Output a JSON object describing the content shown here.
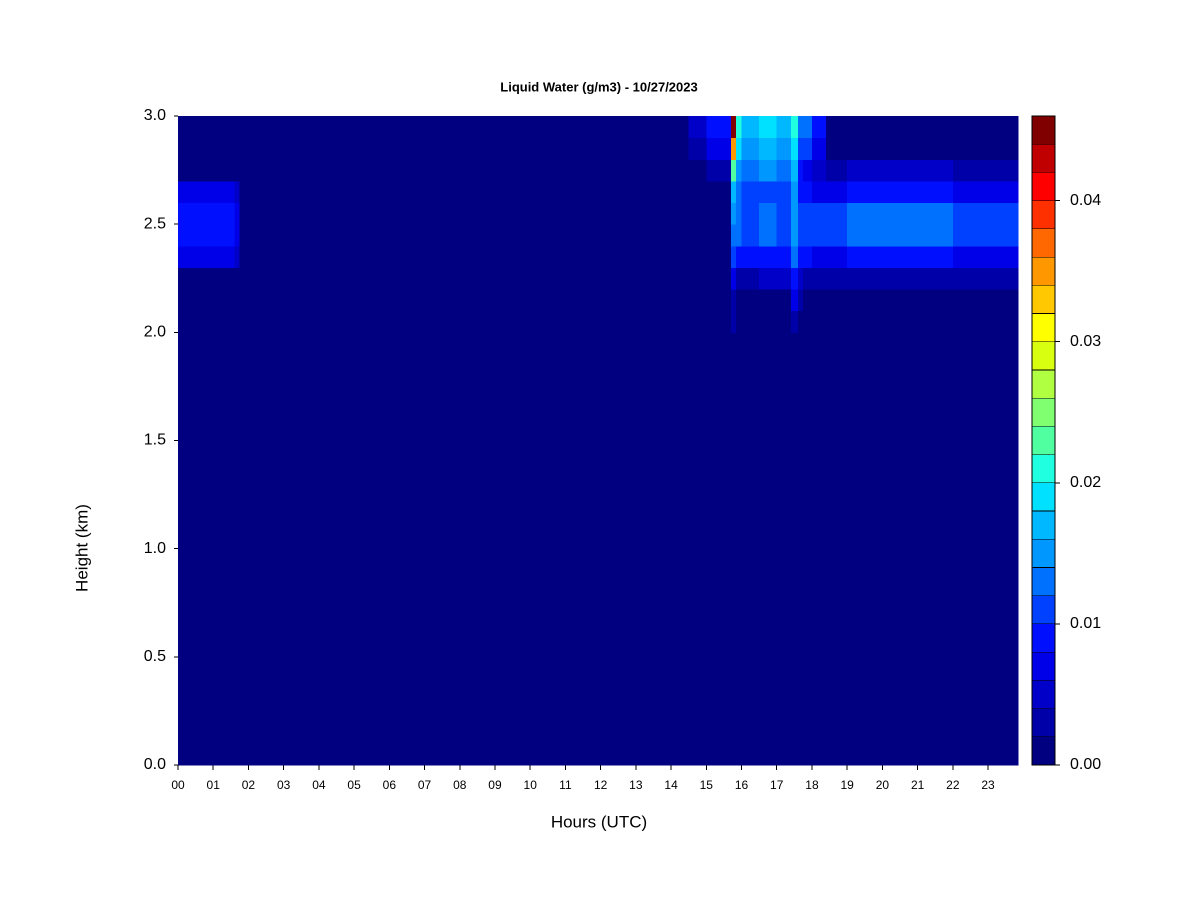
{
  "chart_data": {
    "type": "heatmap",
    "title": "Liquid Water (g/m3) - 10/27/2023",
    "xlabel": "Hours (UTC)",
    "ylabel": "Height (km)",
    "x": [
      0,
      1.6,
      1.75,
      14.5,
      15.0,
      15.7,
      15.85,
      16.0,
      16.5,
      17.0,
      17.4,
      17.6,
      17.75,
      18.0,
      18.4,
      19,
      20,
      21,
      22,
      23,
      23.85
    ],
    "y": [
      0,
      2.0,
      2.1,
      2.2,
      2.3,
      2.4,
      2.5,
      2.6,
      2.7,
      2.8,
      2.9,
      3.0
    ],
    "z": [
      [
        0.001,
        0.001,
        0.001,
        0.001,
        0.001,
        0.001,
        0.001,
        0.001,
        0.001,
        0.001,
        0.001,
        0.001,
        0.001,
        0.001,
        0.001,
        0.001,
        0.001,
        0.001,
        0.001,
        0.001
      ],
      [
        0.001,
        0.001,
        0.001,
        0.001,
        0.001,
        0.002,
        0.001,
        0.001,
        0.001,
        0.001,
        0.003,
        0.001,
        0.001,
        0.001,
        0.001,
        0.001,
        0.001,
        0.001,
        0.001,
        0.001
      ],
      [
        0.001,
        0.001,
        0.001,
        0.001,
        0.001,
        0.003,
        0.001,
        0.001,
        0.001,
        0.001,
        0.006,
        0.002,
        0.001,
        0.001,
        0.001,
        0.001,
        0.001,
        0.001,
        0.001,
        0.001
      ],
      [
        0.001,
        0.001,
        0.001,
        0.001,
        0.001,
        0.006,
        0.003,
        0.003,
        0.004,
        0.004,
        0.008,
        0.004,
        0.003,
        0.002,
        0.002,
        0.002,
        0.002,
        0.002,
        0.002,
        0.002
      ],
      [
        0.006,
        0.004,
        0.001,
        0.001,
        0.001,
        0.01,
        0.008,
        0.008,
        0.008,
        0.008,
        0.012,
        0.008,
        0.008,
        0.007,
        0.007,
        0.008,
        0.008,
        0.008,
        0.007,
        0.006
      ],
      [
        0.009,
        0.007,
        0.001,
        0.001,
        0.001,
        0.013,
        0.012,
        0.011,
        0.012,
        0.011,
        0.014,
        0.01,
        0.011,
        0.011,
        0.011,
        0.012,
        0.012,
        0.012,
        0.011,
        0.01
      ],
      [
        0.009,
        0.007,
        0.001,
        0.001,
        0.001,
        0.014,
        0.012,
        0.011,
        0.012,
        0.011,
        0.014,
        0.01,
        0.011,
        0.011,
        0.011,
        0.012,
        0.012,
        0.012,
        0.011,
        0.01
      ],
      [
        0.006,
        0.004,
        0.001,
        0.001,
        0.001,
        0.016,
        0.012,
        0.01,
        0.011,
        0.01,
        0.014,
        0.008,
        0.008,
        0.007,
        0.007,
        0.008,
        0.008,
        0.008,
        0.007,
        0.006
      ],
      [
        0.001,
        0.001,
        0.001,
        0.001,
        0.003,
        0.022,
        0.014,
        0.012,
        0.014,
        0.012,
        0.016,
        0.008,
        0.006,
        0.004,
        0.003,
        0.004,
        0.004,
        0.004,
        0.003,
        0.003
      ],
      [
        0.001,
        0.001,
        0.001,
        0.003,
        0.006,
        0.034,
        0.018,
        0.014,
        0.016,
        0.014,
        0.018,
        0.01,
        0.01,
        0.006,
        0.001,
        0.001,
        0.001,
        0.001,
        0.001,
        0.001
      ],
      [
        0.001,
        0.001,
        0.001,
        0.005,
        0.008,
        0.044,
        0.02,
        0.016,
        0.018,
        0.016,
        0.02,
        0.012,
        0.012,
        0.008,
        0.001,
        0.001,
        0.001,
        0.001,
        0.001,
        0.001
      ]
    ],
    "xlim": [
      0,
      23.85
    ],
    "ylim": [
      0,
      3
    ],
    "xticks": [
      {
        "value": 0,
        "label": "00"
      },
      {
        "value": 1,
        "label": "01"
      },
      {
        "value": 2,
        "label": "02"
      },
      {
        "value": 3,
        "label": "03"
      },
      {
        "value": 4,
        "label": "04"
      },
      {
        "value": 5,
        "label": "05"
      },
      {
        "value": 6,
        "label": "06"
      },
      {
        "value": 7,
        "label": "07"
      },
      {
        "value": 8,
        "label": "08"
      },
      {
        "value": 9,
        "label": "09"
      },
      10,
      11,
      12,
      13,
      14,
      15,
      16,
      17,
      18,
      19,
      20,
      21,
      22,
      23
    ],
    "yticks": [
      {
        "value": 0,
        "label": "0.0"
      },
      0.5,
      {
        "value": 1,
        "label": "1.0"
      },
      1.5,
      {
        "value": 2,
        "label": "2.0"
      },
      2.5,
      {
        "value": 3,
        "label": "3.0"
      }
    ],
    "levels": [
      0,
      0.002,
      0.004,
      0.006,
      0.008,
      0.01,
      0.012,
      0.014,
      0.016,
      0.018,
      0.02,
      0.022,
      0.024,
      0.026,
      0.028,
      0.03,
      0.032,
      0.034,
      0.036,
      0.038,
      0.04,
      0.042,
      0.044,
      0.046
    ],
    "colors": [
      "#000080",
      "#0000a8",
      "#0000c8",
      "#0000e8",
      "#0010ff",
      "#0040ff",
      "#0070ff",
      "#0098ff",
      "#00b8ff",
      "#00e0ff",
      "#20ffdf",
      "#50ffa0",
      "#80ff70",
      "#b0ff40",
      "#d8ff10",
      "#ffff00",
      "#ffc800",
      "#ff9800",
      "#ff6800",
      "#ff3000",
      "#ff0000",
      "#c00000",
      "#800000"
    ],
    "cticks": [
      {
        "value": 0,
        "label": "0.00"
      },
      0.01,
      0.02,
      0.03,
      0.04
    ]
  }
}
